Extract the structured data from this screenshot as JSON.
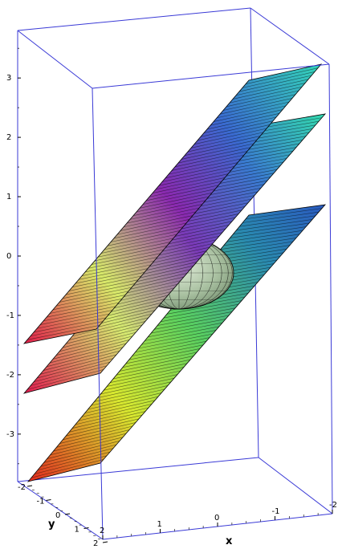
{
  "chart_data": {
    "type": "surface3d",
    "title": "",
    "xlabel": "x",
    "ylabel": "y",
    "zlabel": "",
    "xlim": [
      -2,
      2
    ],
    "ylim": [
      -2,
      2
    ],
    "zlim": [
      -3.8,
      3.8
    ],
    "x_ticks": [
      "-2",
      "-1",
      "0",
      "1",
      "2"
    ],
    "y_ticks": [
      "-2",
      "-1",
      "0",
      "1",
      "2"
    ],
    "z_ticks": [
      "3",
      "2",
      "1",
      "0",
      "-1",
      "-2",
      "-3"
    ],
    "surfaces": [
      {
        "kind": "plane",
        "equation_offset": 1.1
      },
      {
        "kind": "plane",
        "equation_offset": 0
      },
      {
        "kind": "plane",
        "equation_offset": -1.7
      },
      {
        "kind": "sphere",
        "center": [
          0,
          0,
          0
        ],
        "radius": 1
      }
    ],
    "box_color": "#3a3ad6",
    "grid": false
  }
}
